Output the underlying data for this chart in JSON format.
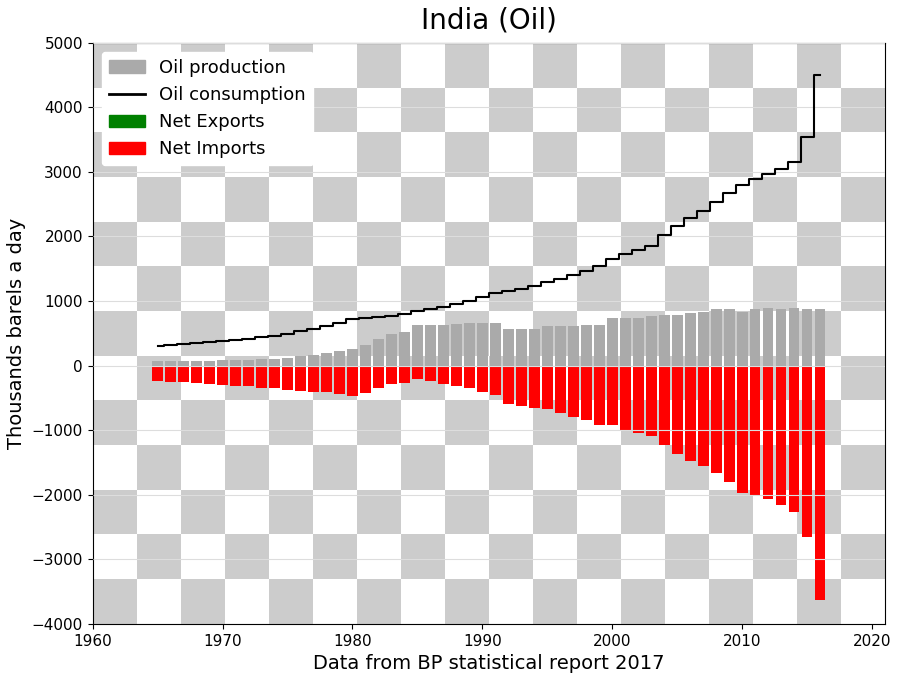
{
  "title": "India (Oil)",
  "xlabel": "Data from BP statistical report 2017",
  "ylabel": "Thousands barels a day",
  "years": [
    1965,
    1966,
    1967,
    1968,
    1969,
    1970,
    1971,
    1972,
    1973,
    1974,
    1975,
    1976,
    1977,
    1978,
    1979,
    1980,
    1981,
    1982,
    1983,
    1984,
    1985,
    1986,
    1987,
    1988,
    1989,
    1990,
    1991,
    1992,
    1993,
    1994,
    1995,
    1996,
    1997,
    1998,
    1999,
    2000,
    2001,
    2002,
    2003,
    2004,
    2005,
    2006,
    2007,
    2008,
    2009,
    2010,
    2011,
    2012,
    2013,
    2014,
    2015,
    2016
  ],
  "production": [
    67,
    72,
    73,
    75,
    78,
    82,
    88,
    92,
    100,
    106,
    116,
    143,
    168,
    200,
    230,
    253,
    319,
    408,
    488,
    527,
    636,
    630,
    628,
    640,
    660,
    660,
    662,
    568,
    560,
    570,
    615,
    620,
    610,
    625,
    635,
    732,
    738,
    742,
    763,
    784,
    785,
    812,
    836,
    875,
    877,
    826,
    875,
    897,
    883,
    893,
    877,
    871
  ],
  "consumption": [
    310,
    325,
    335,
    348,
    362,
    382,
    400,
    416,
    440,
    460,
    490,
    530,
    572,
    615,
    665,
    720,
    740,
    755,
    775,
    803,
    838,
    872,
    915,
    960,
    1005,
    1065,
    1120,
    1162,
    1193,
    1228,
    1290,
    1348,
    1410,
    1468,
    1548,
    1655,
    1730,
    1783,
    1858,
    2020,
    2155,
    2290,
    2396,
    2537,
    2680,
    2795,
    2887,
    2970,
    3040,
    3157,
    3540,
    4500
  ],
  "ylim": [
    -4000,
    5000
  ],
  "xlim": [
    1960,
    2021
  ],
  "production_color": "#aaaaaa",
  "consumption_color": "#000000",
  "net_exports_color": "#008000",
  "net_imports_color": "#ff0000",
  "title_fontsize": 20,
  "label_fontsize": 14,
  "tick_fontsize": 11,
  "legend_fontsize": 13,
  "checkerboard_color1": "#cccccc",
  "checkerboard_color2": "#ffffff",
  "checkerboard_size": 40
}
